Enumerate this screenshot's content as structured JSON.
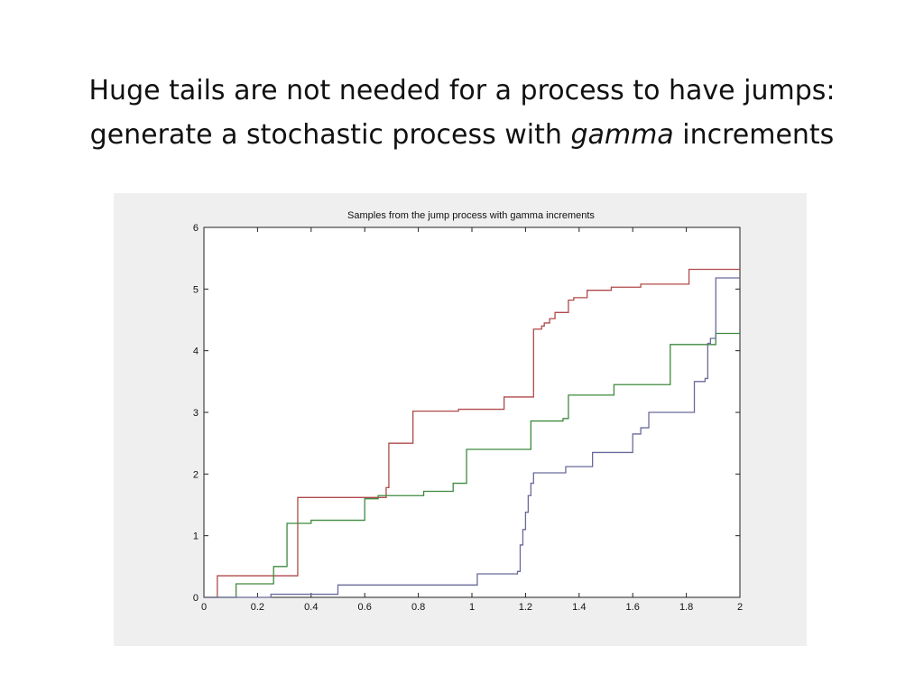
{
  "slide": {
    "title_line1": "Huge tails are not needed for a process to have jumps:",
    "title_line2_before": "generate a stochastic process with ",
    "title_line2_italic": "gamma",
    "title_line2_after": " increments"
  },
  "chart_data": {
    "type": "line",
    "step": true,
    "title": "Samples from the jump process with gamma increments",
    "xlabel": "",
    "ylabel": "",
    "xlim": [
      0,
      2
    ],
    "ylim": [
      0,
      6
    ],
    "xticks": [
      0,
      0.2,
      0.4,
      0.6,
      0.8,
      1,
      1.2,
      1.4,
      1.6,
      1.8,
      2
    ],
    "xtick_labels": [
      "0",
      "0.2",
      "0.4",
      "0.6",
      "0.8",
      "1",
      "1.2",
      "1.4",
      "1.6",
      "1.8",
      "2"
    ],
    "yticks": [
      0,
      1,
      2,
      3,
      4,
      5,
      6
    ],
    "ytick_labels": [
      "0",
      "1",
      "2",
      "3",
      "4",
      "5",
      "6"
    ],
    "grid": false,
    "legend": "none",
    "series": [
      {
        "color": "#b04a4a",
        "x": [
          0,
          0.05,
          0.35,
          0.68,
          0.69,
          0.78,
          0.95,
          1.12,
          1.23,
          1.26,
          1.27,
          1.29,
          1.31,
          1.36,
          1.38,
          1.43,
          1.52,
          1.63,
          1.81,
          2.0
        ],
        "y": [
          0,
          0.35,
          1.62,
          1.78,
          2.5,
          3.02,
          3.05,
          3.25,
          4.35,
          4.4,
          4.45,
          4.52,
          4.62,
          4.82,
          4.86,
          4.98,
          5.03,
          5.08,
          5.32,
          5.32
        ]
      },
      {
        "color": "#3e8a3e",
        "x": [
          0,
          0.12,
          0.26,
          0.31,
          0.4,
          0.6,
          0.6,
          0.65,
          0.82,
          0.93,
          0.98,
          1.22,
          1.34,
          1.36,
          1.53,
          1.74,
          1.91,
          2.0
        ],
        "y": [
          0,
          0.22,
          0.5,
          1.2,
          1.25,
          1.5,
          1.6,
          1.65,
          1.72,
          1.85,
          2.4,
          2.86,
          2.9,
          3.28,
          3.45,
          4.1,
          4.28,
          4.28
        ]
      },
      {
        "color": "#6a6a9a",
        "x": [
          0,
          0.25,
          0.5,
          1.02,
          1.17,
          1.18,
          1.19,
          1.2,
          1.21,
          1.22,
          1.23,
          1.35,
          1.45,
          1.6,
          1.63,
          1.66,
          1.83,
          1.87,
          1.88,
          1.89,
          1.91,
          2.0
        ],
        "y": [
          0,
          0.05,
          0.2,
          0.38,
          0.42,
          0.85,
          1.1,
          1.38,
          1.65,
          1.85,
          2.02,
          2.12,
          2.35,
          2.65,
          2.75,
          3.0,
          3.5,
          3.55,
          4.12,
          4.2,
          5.18,
          5.18
        ]
      }
    ]
  }
}
